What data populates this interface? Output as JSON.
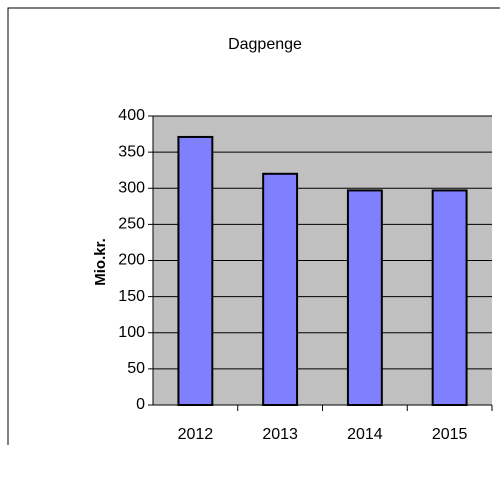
{
  "chart_data": {
    "type": "bar",
    "title": "Dagpenge",
    "y_label": "Mio.kr.",
    "categories": [
      "2012",
      "2013",
      "2014",
      "2015"
    ],
    "values": [
      371,
      320,
      297,
      297
    ],
    "color": "#8080ff",
    "plot_background": "#c0c0c0",
    "ylim": [
      0,
      400
    ],
    "yticks": [
      0,
      50,
      100,
      150,
      200,
      250,
      300,
      350,
      400
    ],
    "grid": true
  }
}
